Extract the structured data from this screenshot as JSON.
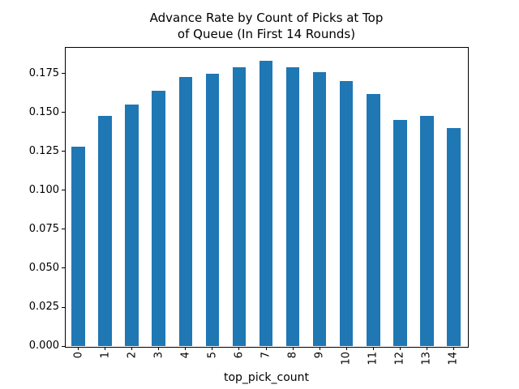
{
  "chart_data": {
    "type": "bar",
    "title": "Advance Rate by Count of Picks at Top\nof Queue (In First 14 Rounds)",
    "xlabel": "top_pick_count",
    "ylabel": "",
    "categories": [
      "0",
      "1",
      "2",
      "3",
      "4",
      "5",
      "6",
      "7",
      "8",
      "9",
      "10",
      "11",
      "12",
      "13",
      "14"
    ],
    "values": [
      0.128,
      0.148,
      0.155,
      0.164,
      0.173,
      0.175,
      0.179,
      0.183,
      0.179,
      0.176,
      0.17,
      0.162,
      0.145,
      0.148,
      0.14
    ],
    "yticks": [
      "0.000",
      "0.025",
      "0.050",
      "0.075",
      "0.100",
      "0.125",
      "0.150",
      "0.175"
    ],
    "ylim": [
      0,
      0.192
    ],
    "xtick_rotation": 90,
    "bar_relative_width": 0.5,
    "bar_color": "#1f77b4",
    "axis_color": "#000000",
    "background_color": "#ffffff",
    "grid": false,
    "legend": "none"
  }
}
